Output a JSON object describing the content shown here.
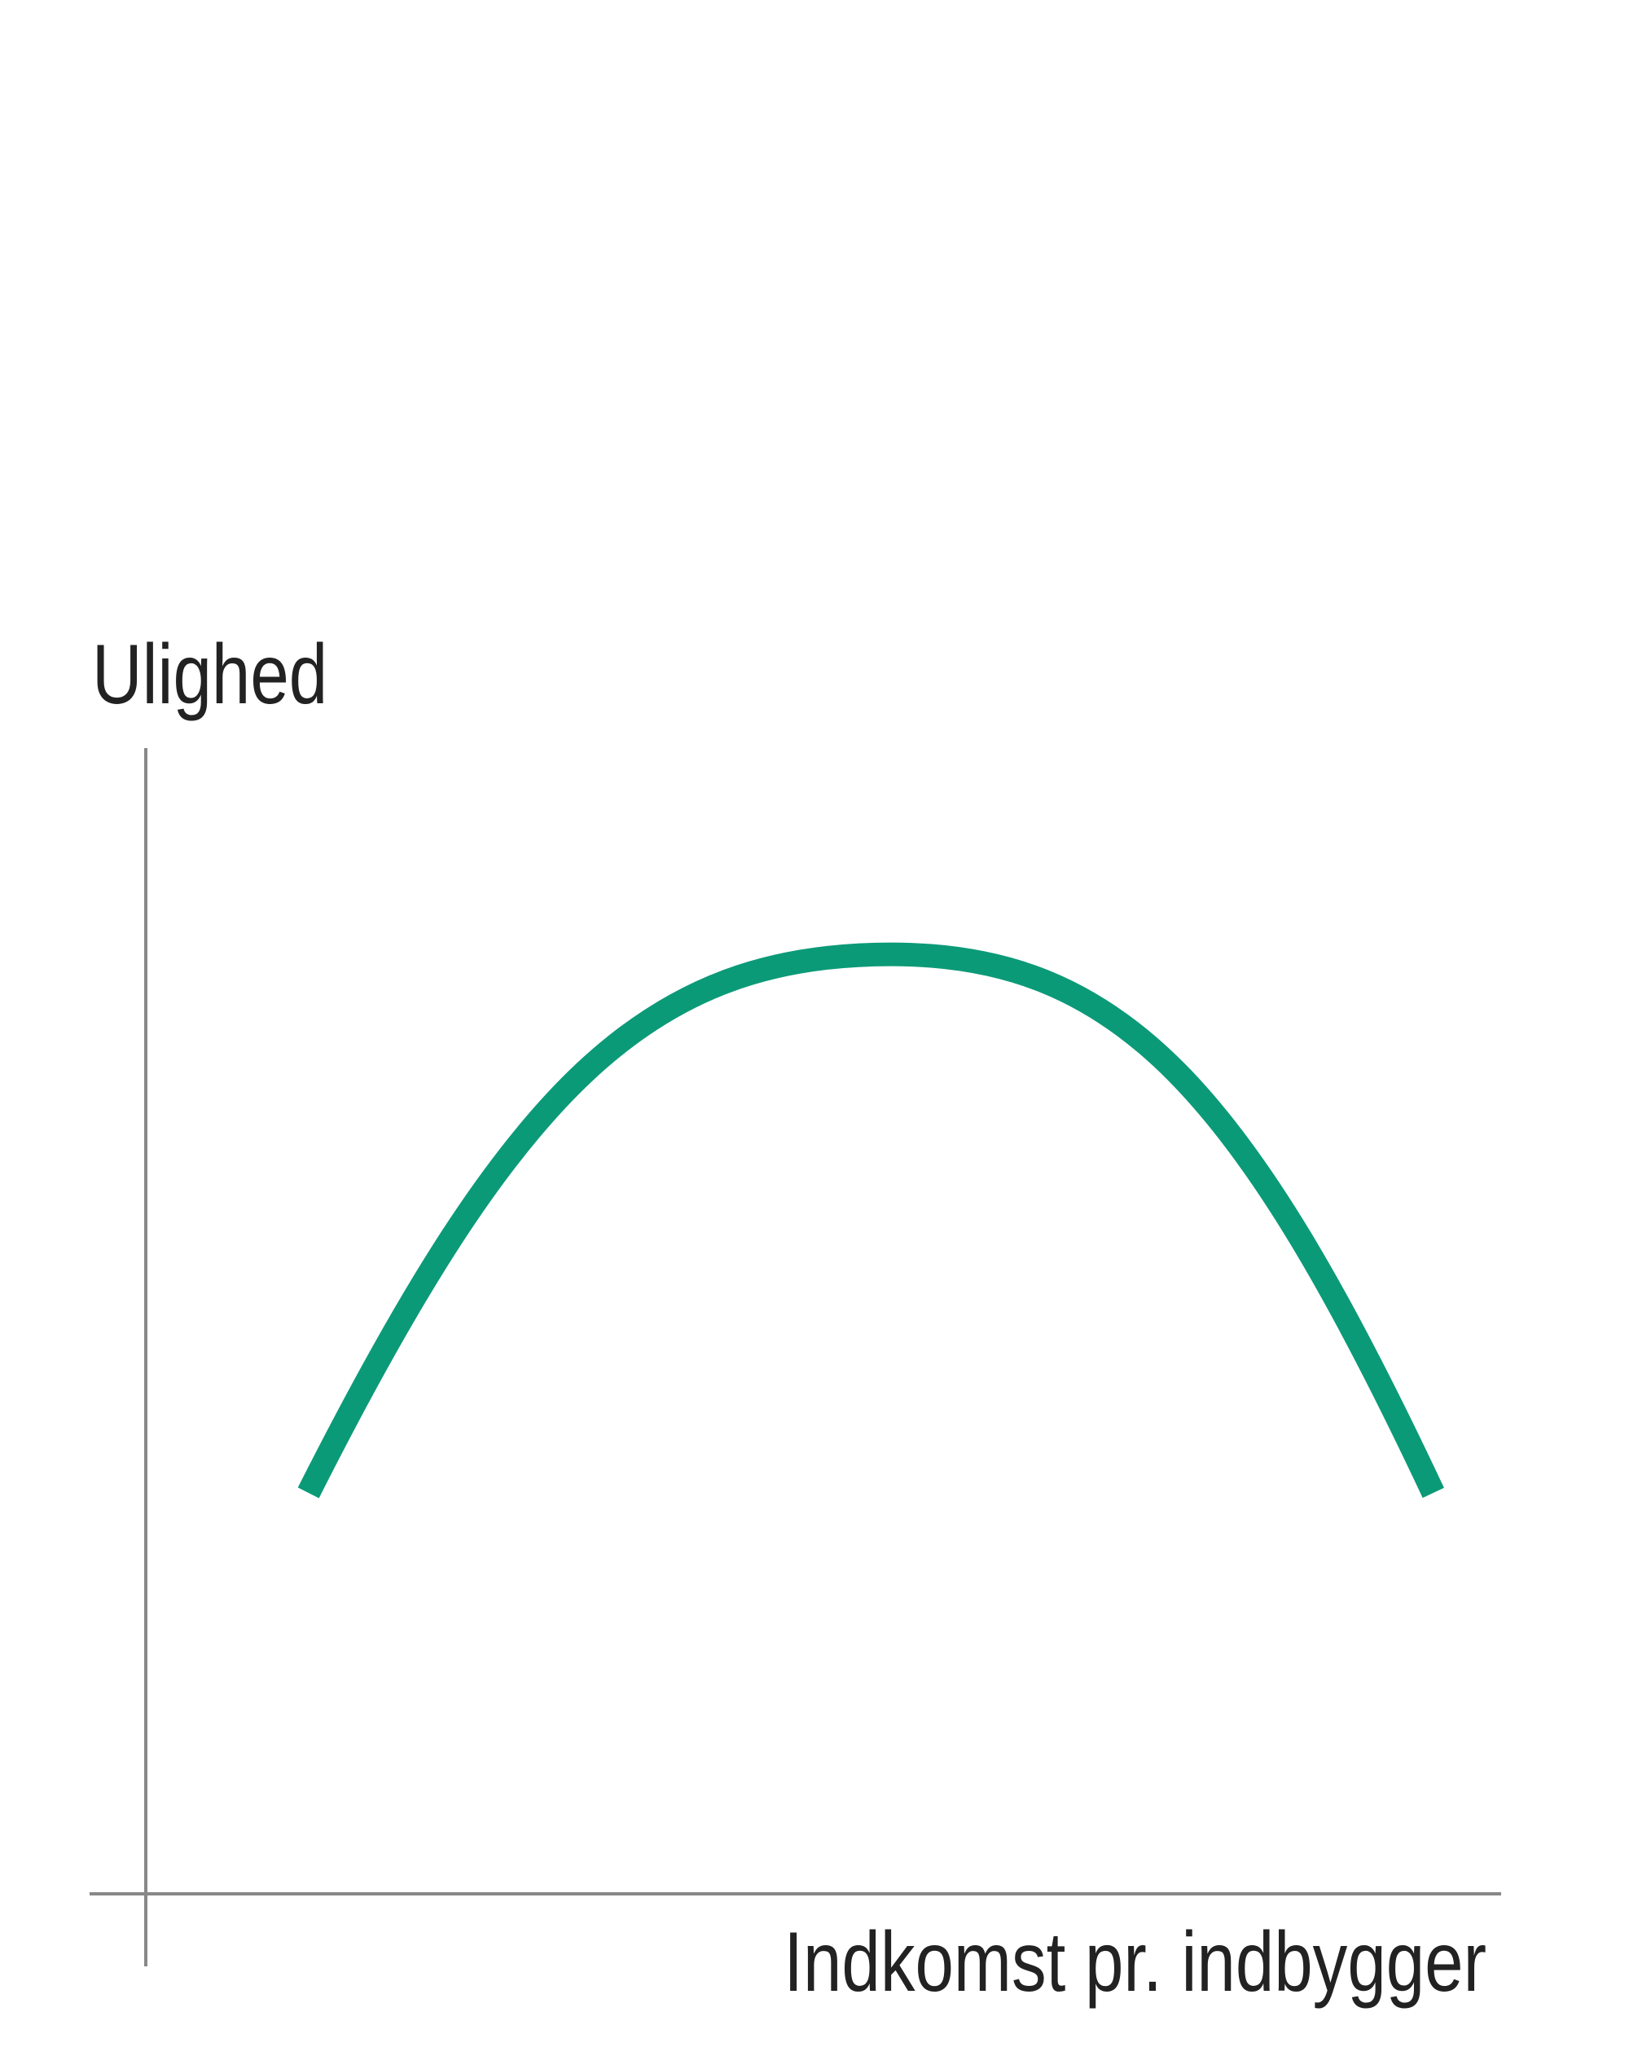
{
  "chart_data": {
    "type": "line",
    "title": "",
    "ylabel": "Ulighed",
    "xlabel": "Indkomst pr. indbygger",
    "grid": false,
    "legend": "none",
    "series": [
      {
        "shape": "inverted-U",
        "x": [
          0.12,
          0.55,
          0.95
        ],
        "y": [
          0.35,
          0.82,
          0.35
        ],
        "color": "#0b9a78"
      }
    ],
    "axis_color": "#888888"
  }
}
